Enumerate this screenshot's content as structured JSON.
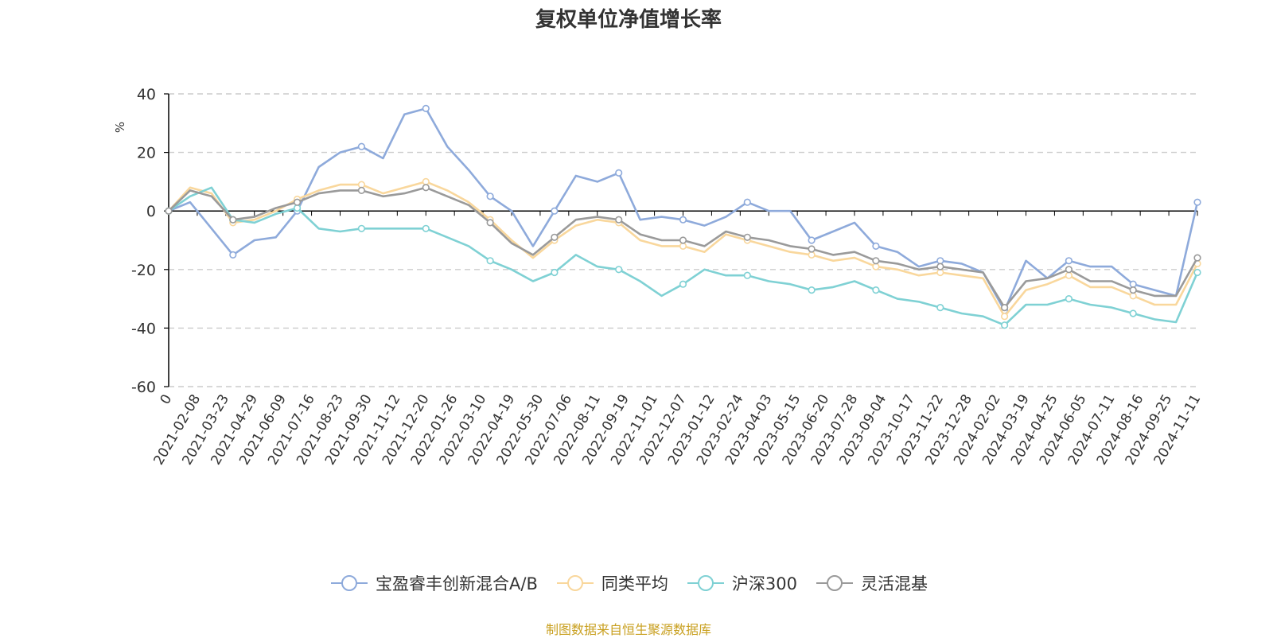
{
  "chart_data": {
    "type": "line",
    "title": "复权单位净值增长率",
    "ylabel": "%",
    "ylim": [
      -60,
      40
    ],
    "yticks": [
      "40",
      "20",
      "0",
      "-20",
      "-40",
      "-60"
    ],
    "x_tick_labels": [
      "0",
      "2021-02-08",
      "2021-03-23",
      "2021-04-29",
      "2021-06-09",
      "2021-07-16",
      "2021-08-23",
      "2021-09-30",
      "2021-11-12",
      "2021-12-20",
      "2022-01-26",
      "2022-03-10",
      "2022-04-19",
      "2022-05-30",
      "2022-07-06",
      "2022-08-11",
      "2022-09-19",
      "2022-11-01",
      "2022-12-07",
      "2023-01-12",
      "2023-02-24",
      "2023-04-03",
      "2023-05-15",
      "2023-06-20",
      "2023-07-28",
      "2023-09-04",
      "2023-10-17",
      "2023-11-22",
      "2023-12-28",
      "2024-02-02",
      "2024-03-19",
      "2024-04-25",
      "2024-06-05",
      "2024-07-11",
      "2024-08-16",
      "2024-09-25",
      "2024-11-11"
    ],
    "grid": true,
    "legend_position": "bottom",
    "series": [
      {
        "name": "宝盈睿丰创新混合A/B",
        "color": "#8eaadb",
        "values": [
          0,
          3,
          -6,
          -15,
          -10,
          -9,
          0,
          15,
          20,
          22,
          18,
          33,
          35,
          22,
          14,
          5,
          0,
          -12,
          0,
          12,
          10,
          13,
          -3,
          -2,
          -3,
          -5,
          -2,
          3,
          0,
          0,
          -10,
          -7,
          -4,
          -12,
          -14,
          -19,
          -17,
          -18,
          -21,
          -34,
          -17,
          -23,
          -17,
          -19,
          -19,
          -25,
          -27,
          -29,
          3
        ]
      },
      {
        "name": "同类平均",
        "color": "#f9d79c",
        "values": [
          0,
          8,
          6,
          -4,
          -3,
          0,
          4,
          7,
          9,
          9,
          6,
          8,
          10,
          7,
          3,
          -3,
          -10,
          -16,
          -10,
          -5,
          -3,
          -4,
          -10,
          -12,
          -12,
          -14,
          -8,
          -10,
          -12,
          -14,
          -15,
          -17,
          -16,
          -19,
          -20,
          -22,
          -21,
          -22,
          -23,
          -36,
          -27,
          -25,
          -22,
          -26,
          -26,
          -29,
          -32,
          -32,
          -18
        ]
      },
      {
        "name": "沪深300",
        "color": "#7fd1d4",
        "values": [
          0,
          5,
          8,
          -3,
          -4,
          -1,
          1,
          -6,
          -7,
          -6,
          -6,
          -6,
          -6,
          -9,
          -12,
          -17,
          -20,
          -24,
          -21,
          -15,
          -19,
          -20,
          -24,
          -29,
          -25,
          -20,
          -22,
          -22,
          -24,
          -25,
          -27,
          -26,
          -24,
          -27,
          -30,
          -31,
          -33,
          -35,
          -36,
          -39,
          -32,
          -32,
          -30,
          -32,
          -33,
          -35,
          -37,
          -38,
          -21
        ]
      },
      {
        "name": "灵活混基",
        "color": "#9a9a9a",
        "values": [
          0,
          7,
          5,
          -3,
          -2,
          1,
          3,
          6,
          7,
          7,
          5,
          6,
          8,
          5,
          2,
          -4,
          -11,
          -15,
          -9,
          -3,
          -2,
          -3,
          -8,
          -10,
          -10,
          -12,
          -7,
          -9,
          -10,
          -12,
          -13,
          -15,
          -14,
          -17,
          -18,
          -20,
          -19,
          -20,
          -21,
          -33,
          -24,
          -23,
          -20,
          -24,
          -24,
          -27,
          -29,
          -29,
          -16
        ]
      }
    ]
  },
  "source_text": "制图数据来自恒生聚源数据库",
  "colors": {
    "axis": "#000000",
    "grid": "#cccccc",
    "unit_label": "#e02020",
    "source": "#c9a020"
  }
}
